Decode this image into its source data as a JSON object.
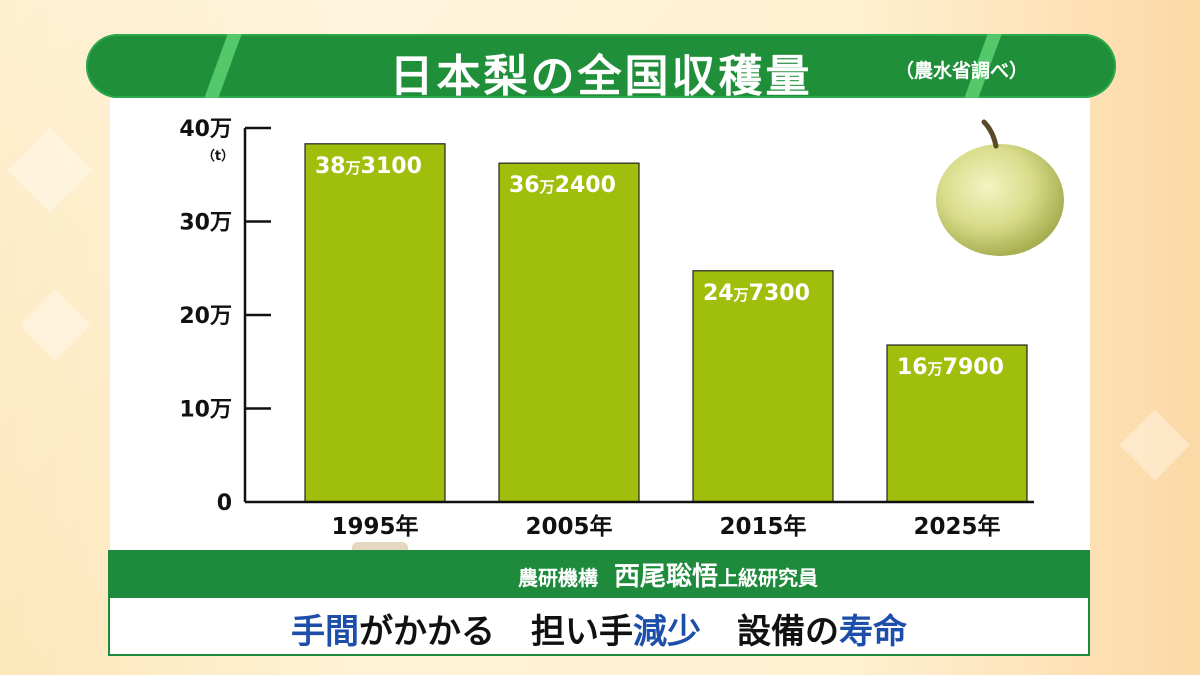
{
  "header": {
    "title": "日本梨の全国収穫量",
    "source": "（農水省調べ）"
  },
  "chart_data": {
    "type": "bar",
    "categories": [
      "1995年",
      "2005年",
      "2015年",
      "2025年"
    ],
    "values": [
      383100,
      362400,
      247300,
      167900
    ],
    "data_labels": [
      {
        "main": "38",
        "unit": "万",
        "rest": "3100"
      },
      {
        "main": "36",
        "unit": "万",
        "rest": "2400"
      },
      {
        "main": "24",
        "unit": "万",
        "rest": "7300"
      },
      {
        "main": "16",
        "unit": "万",
        "rest": "7900"
      }
    ],
    "ylim": [
      0,
      400000
    ],
    "yticks": [
      {
        "value": 0,
        "label": "0"
      },
      {
        "value": 100000,
        "label": "10万"
      },
      {
        "value": 200000,
        "label": "20万"
      },
      {
        "value": 300000,
        "label": "30万"
      },
      {
        "value": 400000,
        "label": "40万"
      }
    ],
    "yunit": "（t）",
    "bar_color": "#9fbf0c",
    "grid": false
  },
  "caption": {
    "org": "農研機構",
    "name": "西尾聡悟",
    "role": "上級研究員",
    "headline": [
      {
        "text": "手間",
        "color": "blue"
      },
      {
        "text": "がかかる",
        "color": "black"
      },
      {
        "text": "担い手",
        "color": "black"
      },
      {
        "text": "減少",
        "color": "blue"
      },
      {
        "text": "設備の",
        "color": "black"
      },
      {
        "text": "寿命",
        "color": "blue"
      }
    ]
  },
  "colors": {
    "banner_green": "#1f8f3a",
    "bar_green": "#9fbf0c",
    "highlight_blue": "#1d4faa"
  },
  "icons": {
    "pear": "pear-photo-icon",
    "avatar": "speaker-avatar"
  }
}
